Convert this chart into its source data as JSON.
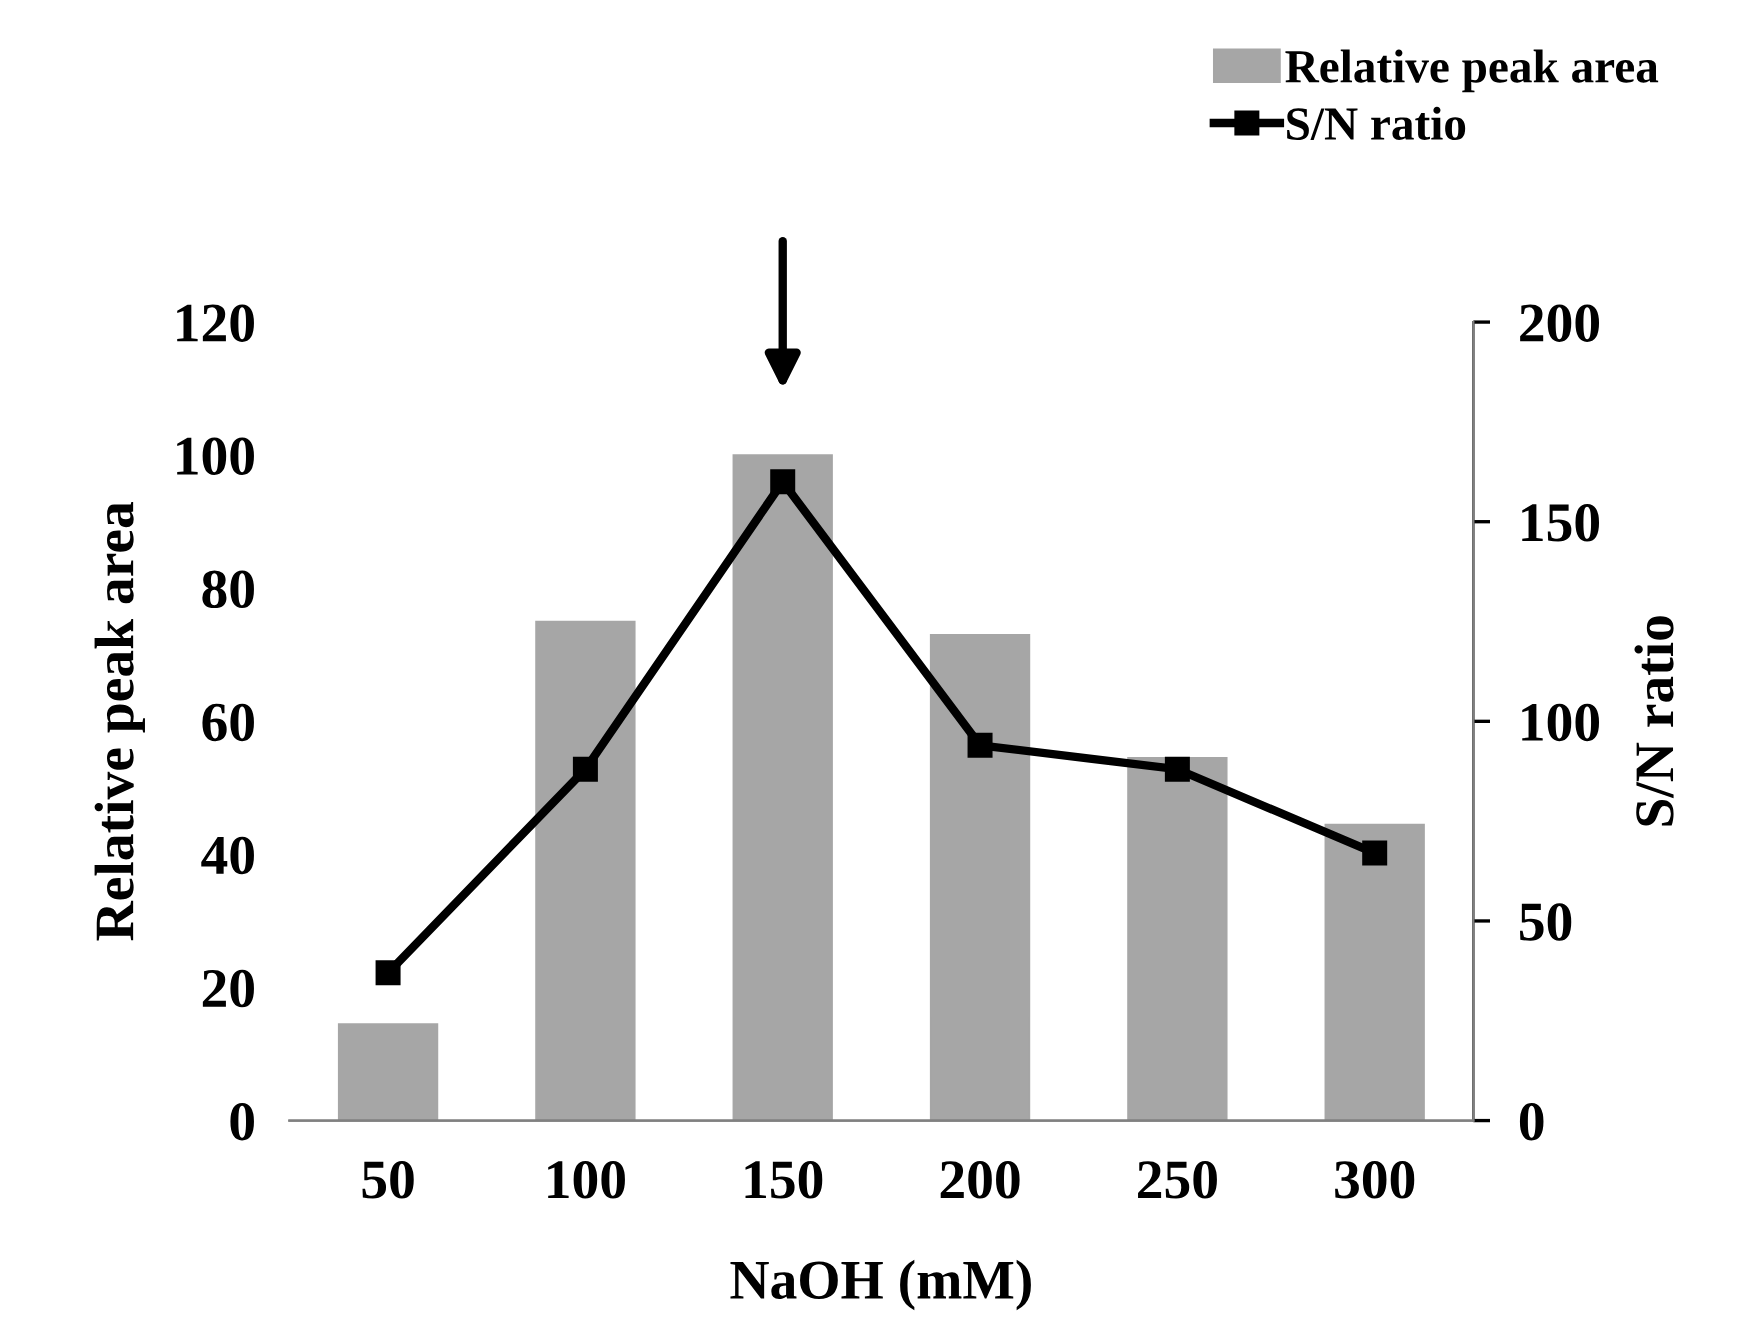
{
  "chart_data": {
    "type": "bar",
    "xlabel": "NaOH (mM)",
    "ylabel": "Relative peak area",
    "y2label": "S/N ratio",
    "categories": [
      "50",
      "100",
      "150",
      "200",
      "250",
      "300"
    ],
    "series": [
      {
        "name": "Relative peak area",
        "color": "#a6a6a6",
        "values": [
          14.5,
          75,
          100,
          73,
          54.5,
          44.5
        ]
      },
      {
        "name": "S/N ratio",
        "type": "line",
        "axis": "y2",
        "color": "#000000",
        "marker": "square",
        "values": [
          37,
          88,
          160,
          94,
          88,
          67
        ]
      }
    ],
    "ylim": [
      0,
      120
    ],
    "yticks": [
      0,
      20,
      40,
      60,
      80,
      100,
      120
    ],
    "y2lim": [
      0,
      200
    ],
    "y2ticks": [
      0,
      50,
      100,
      150,
      200
    ],
    "legend": "top right",
    "grid": false
  }
}
